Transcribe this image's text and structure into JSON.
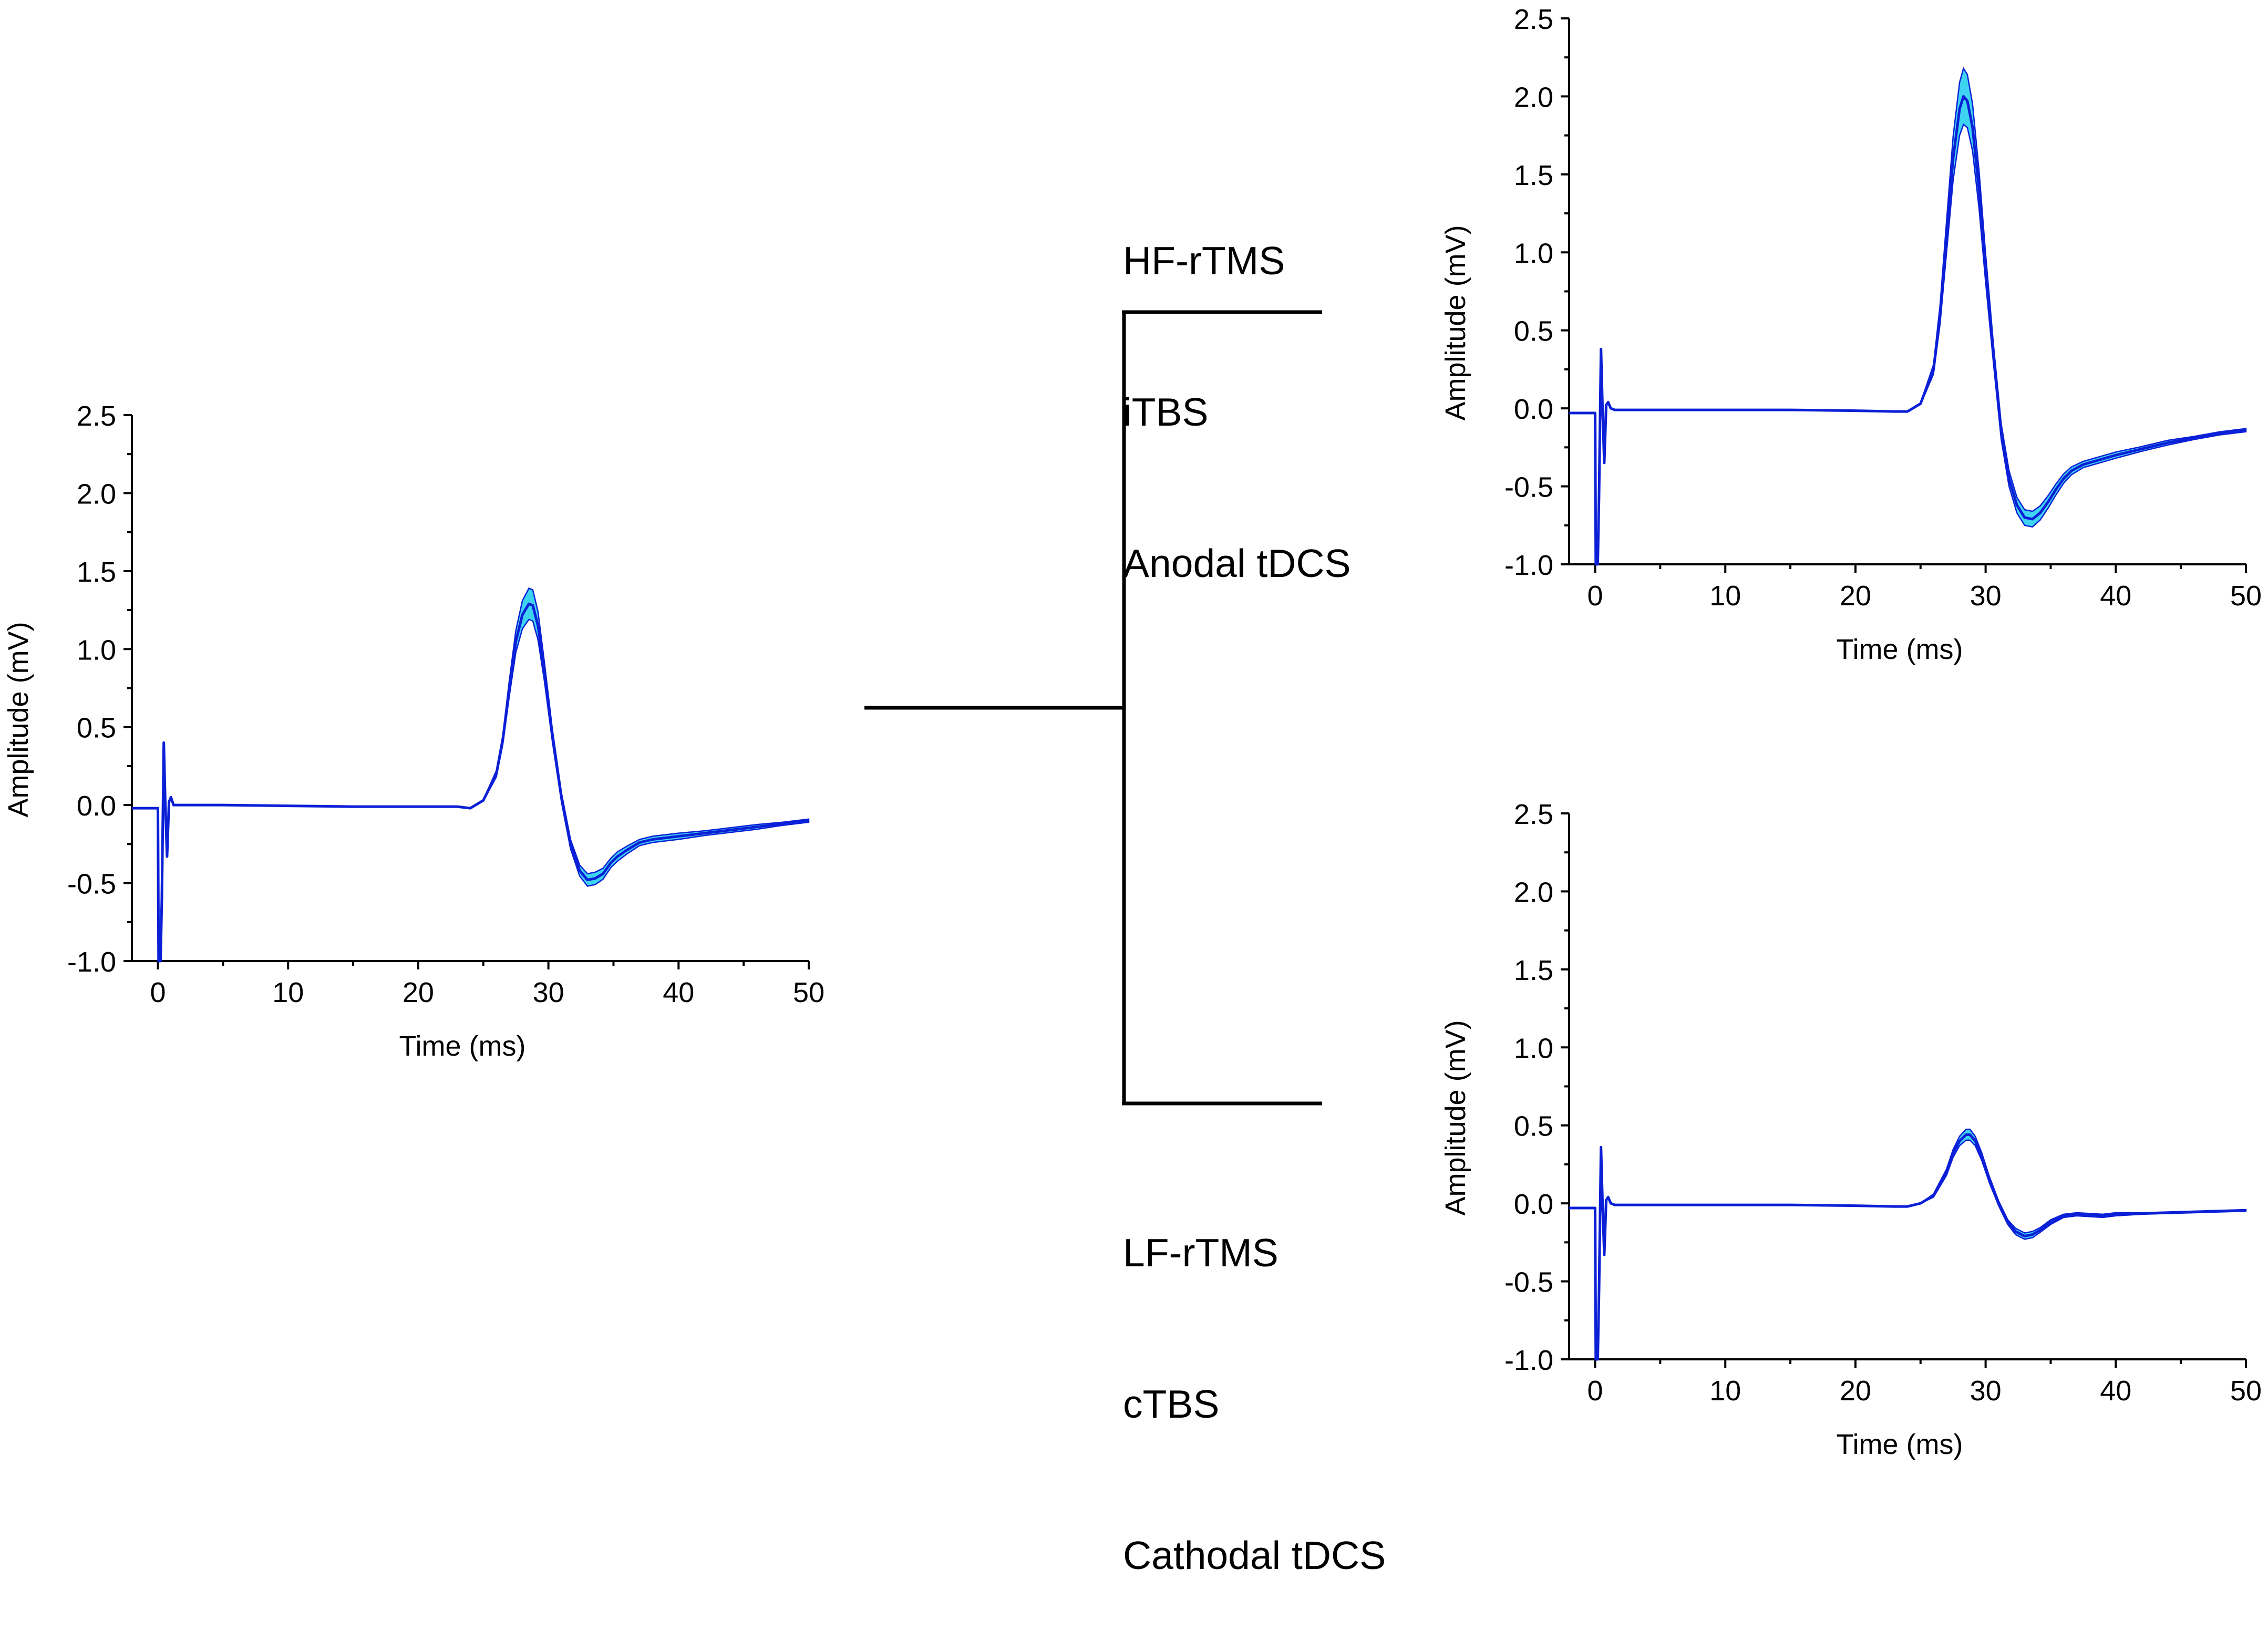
{
  "figure": {
    "groups": {
      "upper": [
        "HF-rTMS",
        "iTBS",
        "Anodal tDCS"
      ],
      "lower": [
        "LF-rTMS",
        "cTBS",
        "Cathodal tDCS"
      ]
    }
  },
  "chart_data": [
    {
      "id": "baseline",
      "type": "line",
      "xlabel": "Time (ms)",
      "ylabel": "Amplitude (mV)",
      "xlim": [
        -2,
        50
      ],
      "ylim": [
        -1.0,
        2.5
      ],
      "xticks": [
        "0",
        "10",
        "20",
        "30",
        "40",
        "50"
      ],
      "yticks": [
        "-1.0",
        "-0.5",
        "0.0",
        "0.5",
        "1.0",
        "1.5",
        "2.0",
        "2.5"
      ],
      "grid": false,
      "series": [
        {
          "color": "#0a1fd6",
          "band_color": "#3fd3f2",
          "x": [
            -2,
            0.0,
            0.05,
            0.2,
            0.3,
            0.45,
            0.55,
            0.7,
            0.85,
            1.0,
            1.2,
            1.5,
            5,
            10,
            15,
            20,
            23,
            24,
            25,
            26,
            26.5,
            27,
            27.5,
            28,
            28.5,
            28.8,
            29.2,
            29.7,
            30.3,
            31,
            31.7,
            32.4,
            33,
            33.6,
            34.2,
            34.8,
            35.3,
            36,
            37,
            38,
            40,
            42,
            44,
            46,
            48,
            50
          ],
          "y": [
            -0.02,
            -0.02,
            -1.0,
            -1.0,
            -0.6,
            0.4,
            0.05,
            -0.33,
            0.02,
            0.05,
            0.0,
            0.0,
            0.0,
            -0.005,
            -0.01,
            -0.01,
            -0.01,
            -0.02,
            0.03,
            0.2,
            0.42,
            0.75,
            1.05,
            1.22,
            1.29,
            1.28,
            1.15,
            0.85,
            0.45,
            0.05,
            -0.25,
            -0.42,
            -0.48,
            -0.47,
            -0.44,
            -0.37,
            -0.33,
            -0.29,
            -0.24,
            -0.22,
            -0.2,
            -0.18,
            -0.16,
            -0.14,
            -0.12,
            -0.1
          ],
          "band_halfwidth": [
            0,
            0,
            0,
            0,
            0,
            0,
            0,
            0,
            0,
            0,
            0,
            0,
            0,
            0,
            0,
            0,
            0,
            0,
            0.005,
            0.02,
            0.03,
            0.05,
            0.07,
            0.09,
            0.1,
            0.1,
            0.09,
            0.06,
            0.04,
            0.03,
            0.03,
            0.035,
            0.04,
            0.04,
            0.035,
            0.03,
            0.03,
            0.025,
            0.02,
            0.02,
            0.02,
            0.015,
            0.015,
            0.015,
            0.01,
            0.01
          ]
        }
      ]
    },
    {
      "id": "facilitation",
      "type": "line",
      "xlabel": "Time (ms)",
      "ylabel": "Amplitude (mV)",
      "xlim": [
        -2,
        50
      ],
      "ylim": [
        -1.0,
        2.5
      ],
      "xticks": [
        "0",
        "10",
        "20",
        "30",
        "40",
        "50"
      ],
      "yticks": [
        "-1.0",
        "-0.5",
        "0.0",
        "0.5",
        "1.0",
        "1.5",
        "2.0",
        "2.5"
      ],
      "grid": false,
      "series": [
        {
          "color": "#0a1fd6",
          "band_color": "#3fd3f2",
          "x": [
            -2,
            0.0,
            0.05,
            0.2,
            0.3,
            0.45,
            0.55,
            0.7,
            0.85,
            1.0,
            1.2,
            1.5,
            5,
            10,
            15,
            20,
            23,
            24,
            25,
            26,
            26.5,
            27,
            27.5,
            28,
            28.3,
            28.6,
            29,
            29.5,
            30,
            30.6,
            31.2,
            31.8,
            32.4,
            33,
            33.6,
            34.2,
            34.8,
            35.4,
            36,
            36.6,
            37.5,
            40,
            42,
            44,
            46,
            48,
            50
          ],
          "y": [
            -0.03,
            -0.03,
            -1.0,
            -1.0,
            -0.55,
            0.38,
            0.05,
            -0.35,
            0.02,
            0.04,
            0.0,
            -0.01,
            -0.01,
            -0.01,
            -0.01,
            -0.015,
            -0.02,
            -0.02,
            0.03,
            0.25,
            0.6,
            1.1,
            1.6,
            1.92,
            2.0,
            1.97,
            1.8,
            1.4,
            0.9,
            0.35,
            -0.15,
            -0.45,
            -0.62,
            -0.7,
            -0.71,
            -0.67,
            -0.6,
            -0.52,
            -0.45,
            -0.4,
            -0.36,
            -0.3,
            -0.26,
            -0.22,
            -0.19,
            -0.16,
            -0.14
          ],
          "band_halfwidth": [
            0,
            0,
            0,
            0,
            0,
            0,
            0,
            0,
            0,
            0,
            0,
            0,
            0,
            0,
            0,
            0,
            0,
            0,
            0.005,
            0.03,
            0.06,
            0.1,
            0.14,
            0.17,
            0.18,
            0.17,
            0.15,
            0.12,
            0.09,
            0.06,
            0.05,
            0.05,
            0.05,
            0.05,
            0.05,
            0.045,
            0.04,
            0.035,
            0.03,
            0.025,
            0.02,
            0.02,
            0.015,
            0.015,
            0.01,
            0.01,
            0.01
          ]
        }
      ]
    },
    {
      "id": "inhibition",
      "type": "line",
      "xlabel": "Time (ms)",
      "ylabel": "Amplitude (mV)",
      "xlim": [
        -2,
        50
      ],
      "ylim": [
        -1.0,
        2.5
      ],
      "xticks": [
        "0",
        "10",
        "20",
        "30",
        "40",
        "50"
      ],
      "yticks": [
        "-1.0",
        "-0.5",
        "0.0",
        "0.5",
        "1.0",
        "1.5",
        "2.0",
        "2.5"
      ],
      "grid": false,
      "series": [
        {
          "color": "#0a1fd6",
          "band_color": "#3fd3f2",
          "x": [
            -2,
            0.0,
            0.05,
            0.2,
            0.3,
            0.45,
            0.55,
            0.7,
            0.85,
            1.0,
            1.2,
            1.5,
            5,
            10,
            15,
            20,
            23,
            24,
            25,
            26,
            27,
            27.5,
            28,
            28.5,
            28.8,
            29.2,
            29.7,
            30.3,
            31,
            31.7,
            32.3,
            33,
            33.6,
            34.2,
            35,
            36,
            37,
            38,
            39,
            40,
            42,
            44,
            46,
            48,
            50
          ],
          "y": [
            -0.03,
            -0.03,
            -1.0,
            -1.0,
            -0.55,
            0.36,
            0.05,
            -0.33,
            0.02,
            0.04,
            0.0,
            -0.01,
            -0.01,
            -0.01,
            -0.01,
            -0.015,
            -0.02,
            -0.02,
            0.0,
            0.05,
            0.2,
            0.32,
            0.4,
            0.44,
            0.44,
            0.4,
            0.3,
            0.15,
            0.0,
            -0.12,
            -0.18,
            -0.21,
            -0.2,
            -0.17,
            -0.12,
            -0.08,
            -0.07,
            -0.075,
            -0.08,
            -0.07,
            -0.065,
            -0.06,
            -0.055,
            -0.05,
            -0.045
          ],
          "band_halfwidth": [
            0,
            0,
            0,
            0,
            0,
            0,
            0,
            0,
            0,
            0,
            0,
            0,
            0,
            0,
            0,
            0,
            0,
            0,
            0,
            0.01,
            0.02,
            0.025,
            0.03,
            0.035,
            0.035,
            0.03,
            0.025,
            0.02,
            0.015,
            0.015,
            0.02,
            0.02,
            0.02,
            0.015,
            0.015,
            0.01,
            0.01,
            0.01,
            0.01,
            0.01,
            0.005,
            0.005,
            0.005,
            0.005,
            0.005
          ]
        }
      ]
    }
  ]
}
